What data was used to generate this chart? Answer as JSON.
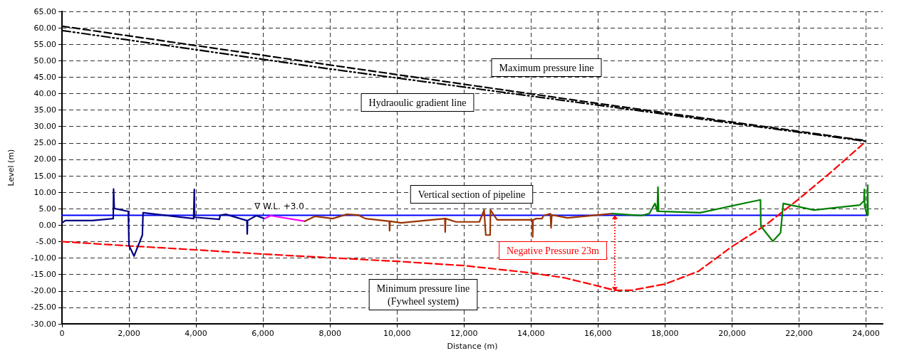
{
  "chart_data": {
    "type": "line",
    "xlabel": "Distance (m)",
    "ylabel": "Level (m)",
    "xlim": [
      0,
      24500
    ],
    "ylim": [
      -30,
      65
    ],
    "xticks": [
      0,
      {
        "value": 2000,
        "label": "2,000"
      },
      {
        "value": 4000,
        "label": "4,000"
      },
      {
        "value": 6000,
        "label": "6,000"
      },
      {
        "value": 8000,
        "label": "8,000"
      },
      {
        "value": 10000,
        "label": "10,000"
      },
      {
        "value": 12000,
        "label": "12,000"
      },
      {
        "value": 14000,
        "label": "14,000"
      },
      {
        "value": 16000,
        "label": "16,000"
      },
      {
        "value": 18000,
        "label": "18,000"
      },
      {
        "value": 20000,
        "label": "20,000"
      },
      {
        "value": 22000,
        "label": "22,000"
      },
      {
        "value": 24000,
        "label": "24,000"
      }
    ],
    "yticks": [
      {
        "value": -30,
        "label": "-30.00"
      },
      {
        "value": -25,
        "label": "-25.00"
      },
      {
        "value": -20,
        "label": "-20.00"
      },
      {
        "value": -15,
        "label": "-15.00"
      },
      {
        "value": -10,
        "label": "-10.00"
      },
      {
        "value": -5,
        "label": "-5.00"
      },
      {
        "value": 0,
        "label": "0.00"
      },
      {
        "value": 5,
        "label": "5.00"
      },
      {
        "value": 10,
        "label": "10.00"
      },
      {
        "value": 15,
        "label": "15.00"
      },
      {
        "value": 20,
        "label": "20.00"
      },
      {
        "value": 25,
        "label": "25.00"
      },
      {
        "value": 30,
        "label": "30.00"
      },
      {
        "value": 35,
        "label": "35.00"
      },
      {
        "value": 40,
        "label": "40.00"
      },
      {
        "value": 45,
        "label": "45.00"
      },
      {
        "value": 50,
        "label": "50.00"
      },
      {
        "value": 55,
        "label": "55.00"
      },
      {
        "value": 60,
        "label": "60.00"
      },
      {
        "value": 65,
        "label": "65.00"
      }
    ],
    "grid": true,
    "marker": "none",
    "series": [
      {
        "color": "#000000",
        "line_style": "dashed",
        "x": [
          0,
          8000,
          16000,
          24000
        ],
        "values": [
          60.5,
          48.7,
          37,
          25.7
        ]
      },
      {
        "color": "#000000",
        "line_style": "dashdot",
        "x": [
          0,
          8000,
          16000,
          24000
        ],
        "values": [
          59.2,
          47.5,
          36.5,
          25.5
        ]
      },
      {
        "color": "#0000ff",
        "line_style": "solid",
        "x": [
          0,
          24000
        ],
        "values": [
          3,
          3
        ]
      },
      {
        "color": "#ff0000",
        "line_style": "dashed",
        "x": [
          0,
          2000,
          4000,
          6000,
          8000,
          10000,
          12000,
          14000,
          15000,
          16000,
          16500,
          17000,
          18000,
          19000,
          20000,
          21000,
          22000,
          23000,
          24000
        ],
        "values": [
          -5,
          -6.3,
          -7.5,
          -8.8,
          -9.9,
          -11,
          -12.3,
          -14.5,
          -16,
          -18.5,
          -19.8,
          -19.8,
          -17.9,
          -14,
          -6.5,
          0,
          8,
          16.5,
          25.5
        ]
      },
      {
        "color": "#000080",
        "line_style": "solid",
        "x": [
          0,
          100,
          900,
          1530,
          1540,
          1560,
          1980,
          2000,
          2150,
          2400,
          2420,
          3930,
          3950,
          3960,
          4700,
          4720,
          4890,
          5520,
          5530,
          5540,
          5800,
          6050
        ],
        "values": [
          0.7,
          1.4,
          1.4,
          2.0,
          11.0,
          5.1,
          4.2,
          -6.2,
          -9.4,
          -3.0,
          3.8,
          2.0,
          10.9,
          2.4,
          1.8,
          3.0,
          3.3,
          1.4,
          -2.7,
          1.4,
          2.9,
          2.0
        ]
      },
      {
        "color": "#ff00ff",
        "line_style": "solid",
        "x": [
          6050,
          6230,
          7250
        ],
        "values": [
          2.0,
          2.9,
          1.2
        ]
      },
      {
        "color": "#993300",
        "line_style": "solid",
        "x": [
          7250,
          7550,
          8080,
          8500,
          8840,
          9060,
          9770,
          9780,
          9790,
          10120,
          11430,
          11440,
          11450,
          11760,
          12460,
          12600,
          12650,
          12780,
          12790,
          12990,
          14040,
          14050,
          14060,
          14160,
          14330,
          14370,
          14580,
          14600,
          14620,
          15090,
          16430
        ],
        "values": [
          1.2,
          2.7,
          2.0,
          3.3,
          3.1,
          2.0,
          1.2,
          -1.7,
          1.2,
          0.7,
          2.0,
          -2.1,
          2.0,
          1.0,
          1.0,
          4.6,
          -3.0,
          -3.0,
          4.6,
          1.6,
          1.6,
          -3.6,
          1.6,
          2.0,
          2.0,
          2.9,
          3.5,
          -0.8,
          3.1,
          2.2,
          3.5
        ]
      },
      {
        "color": "#008000",
        "line_style": "solid",
        "x": [
          16430,
          17280,
          17530,
          17700,
          17770,
          17790,
          17810,
          19050,
          20850,
          20860,
          21220,
          21450,
          21530,
          22450,
          23810,
          23940,
          23950,
          23960,
          24040,
          24050,
          24060
        ],
        "values": [
          3.5,
          2.9,
          3.5,
          6.6,
          4.2,
          11.6,
          4.2,
          3.8,
          7.7,
          -0.3,
          -4.9,
          -2.3,
          6.6,
          4.6,
          6.1,
          7.4,
          10.9,
          5.7,
          2.9,
          12.2,
          3.1
        ]
      }
    ],
    "annotations": [
      "Maximum pressure line",
      "Hydraoulic gradient line",
      "Vertical section of pipeline",
      "∇ W.L. +3.0",
      "Negative Pressure 23m",
      "Minimum pressure line\n(Fywheel system)"
    ]
  }
}
